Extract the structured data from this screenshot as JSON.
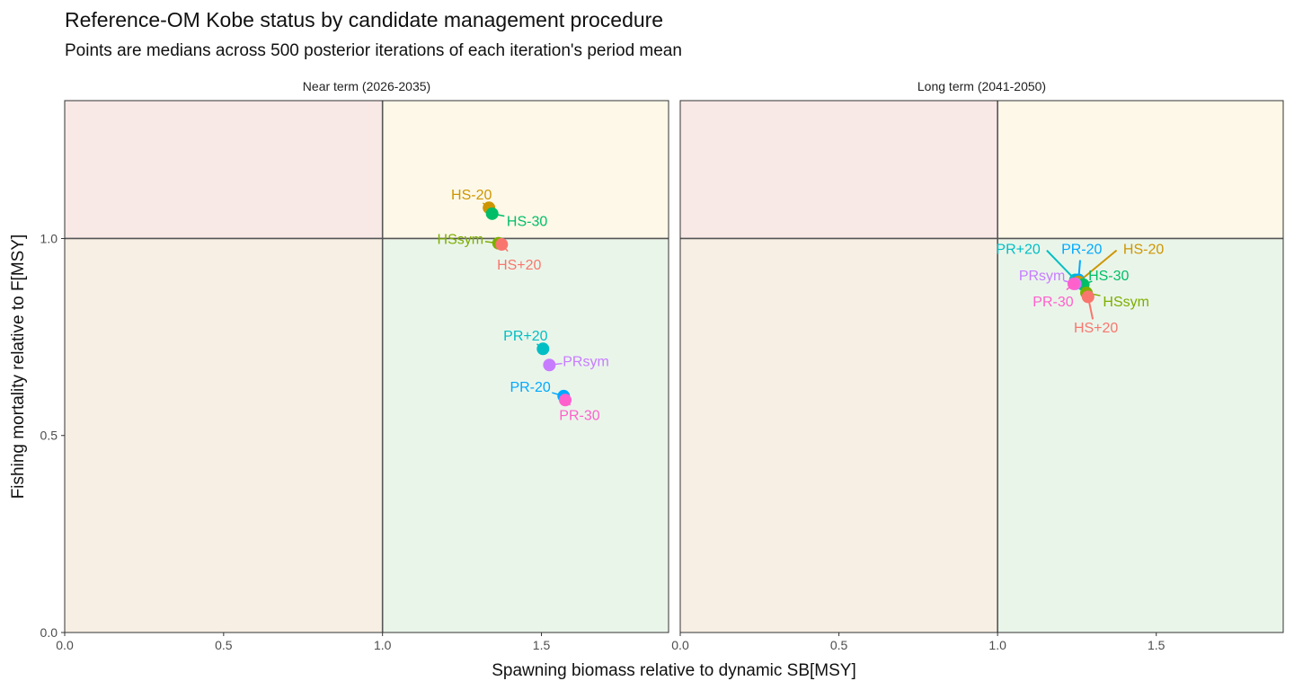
{
  "title": "Reference-OM Kobe status by candidate management procedure",
  "subtitle": "Points are medians across 500 posterior iterations of each iteration's period mean",
  "xlabel": "Spawning biomass relative to dynamic SB[MSY]",
  "ylabel": "Fishing mortality relative to F[MSY]",
  "colors": {
    "HS+20": "#F8766D",
    "HS-20": "#CD9600",
    "HSsym": "#7CAE00",
    "HS-30": "#00BE67",
    "PR+20": "#00BFC4",
    "PR-20": "#00A9FF",
    "PRsym": "#C77CFF",
    "PR-30": "#FF61CC"
  },
  "quadrant_colors": {
    "overfished_overfishing": "#f8e9e7",
    "not_overfished_overfishing": "#fdf8e8",
    "overfished_no_overfishing": "#f8efe4",
    "not_overfished_no_overfishing": "#eaf5ea"
  },
  "chart_data": [
    {
      "type": "scatter",
      "panel": "Near term (2026-2035)",
      "xlim": [
        0,
        1.9
      ],
      "ylim": [
        0,
        1.35
      ],
      "x_ticks": [
        0.0,
        0.5,
        1.0,
        1.5
      ],
      "y_ticks": [
        0.0,
        0.5,
        1.0
      ],
      "ref_lines": {
        "x": 1.0,
        "y": 1.0
      },
      "points": [
        {
          "label": "HS-20",
          "x": 1.335,
          "y": 1.078,
          "label_x": 1.28,
          "label_y": 1.113
        },
        {
          "label": "HS-30",
          "x": 1.345,
          "y": 1.063,
          "label_x": 1.455,
          "label_y": 1.046
        },
        {
          "label": "HSsym",
          "x": 1.365,
          "y": 0.988,
          "label_x": 1.245,
          "label_y": 1.0
        },
        {
          "label": "HS+20",
          "x": 1.375,
          "y": 0.985,
          "label_x": 1.43,
          "label_y": 0.935
        },
        {
          "label": "PR+20",
          "x": 1.505,
          "y": 0.72,
          "label_x": 1.45,
          "label_y": 0.755
        },
        {
          "label": "PRsym",
          "x": 1.525,
          "y": 0.679,
          "label_x": 1.64,
          "label_y": 0.69
        },
        {
          "label": "PR-20",
          "x": 1.57,
          "y": 0.6,
          "label_x": 1.465,
          "label_y": 0.625
        },
        {
          "label": "PR-30",
          "x": 1.575,
          "y": 0.59,
          "label_x": 1.62,
          "label_y": 0.553
        }
      ]
    },
    {
      "type": "scatter",
      "panel": "Long term (2041-2050)",
      "xlim": [
        0,
        1.9
      ],
      "ylim": [
        0,
        1.35
      ],
      "x_ticks": [
        0.0,
        0.5,
        1.0,
        1.5
      ],
      "y_ticks": [
        0.0,
        0.5,
        1.0
      ],
      "ref_lines": {
        "x": 1.0,
        "y": 1.0
      },
      "points": [
        {
          "label": "PR+20",
          "x": 1.245,
          "y": 0.895,
          "label_x": 1.065,
          "label_y": 0.975,
          "leader_x": 1.155,
          "leader_y": 0.97
        },
        {
          "label": "PR-20",
          "x": 1.255,
          "y": 0.895,
          "label_x": 1.265,
          "label_y": 0.975,
          "leader_x": 1.26,
          "leader_y": 0.945
        },
        {
          "label": "HS-20",
          "x": 1.255,
          "y": 0.89,
          "label_x": 1.46,
          "label_y": 0.975,
          "leader_x": 1.375,
          "leader_y": 0.97
        },
        {
          "label": "HS-30",
          "x": 1.27,
          "y": 0.883,
          "label_x": 1.35,
          "label_y": 0.908
        },
        {
          "label": "PRsym",
          "x": 1.245,
          "y": 0.885,
          "label_x": 1.14,
          "label_y": 0.908
        },
        {
          "label": "PR-30",
          "x": 1.24,
          "y": 0.885,
          "label_x": 1.175,
          "label_y": 0.842
        },
        {
          "label": "HSsym",
          "x": 1.28,
          "y": 0.862,
          "label_x": 1.405,
          "label_y": 0.842
        },
        {
          "label": "HS+20",
          "x": 1.285,
          "y": 0.852,
          "label_x": 1.31,
          "label_y": 0.775,
          "leader_x": 1.3,
          "leader_y": 0.795
        }
      ]
    }
  ]
}
